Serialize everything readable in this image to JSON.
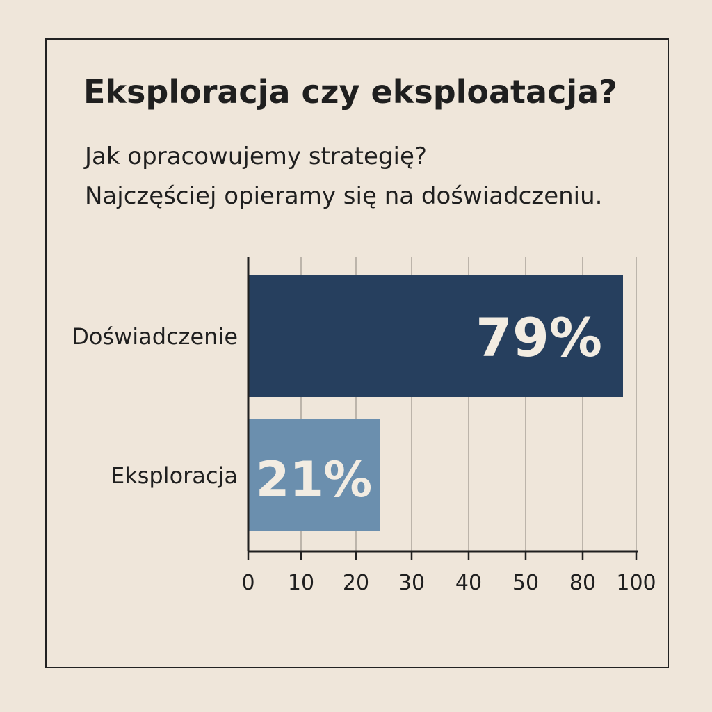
{
  "title": "Eksploracja czy eksploatacja?",
  "subtitle_lines": [
    "Jak opracowujemy strategię?",
    "Najczęściej opieramy się na doświadczeniu."
  ],
  "colors": {
    "background": "#efe6da",
    "text": "#1f1f1f",
    "bar_dark": "#263f5e",
    "bar_light": "#6b8fae",
    "bar_label": "#f2ece2",
    "gridline": "#9a948c"
  },
  "chart_data": {
    "type": "bar",
    "orientation": "horizontal",
    "categories": [
      "Doświadczenie",
      "Eksploracja"
    ],
    "values": [
      79,
      21
    ],
    "data_labels": [
      "79%",
      "21%"
    ],
    "bar_colors": [
      "#263f5e",
      "#6b8fae"
    ],
    "x_ticks": [
      0,
      10,
      20,
      30,
      40,
      50,
      80,
      100
    ],
    "grid": true,
    "title": "",
    "xlabel": "",
    "ylabel": ""
  }
}
